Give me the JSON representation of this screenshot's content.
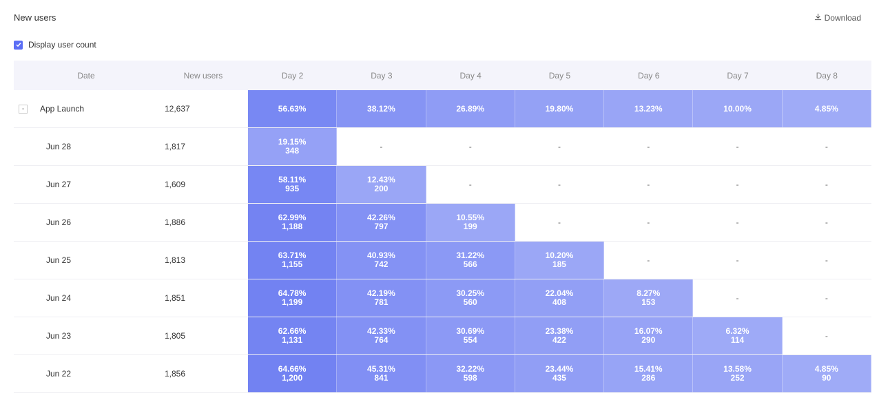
{
  "header": {
    "title": "New users",
    "download_label": "Download",
    "checkbox_label": "Display user count",
    "checkbox_checked": true
  },
  "columns": [
    "Date",
    "New users",
    "Day 2",
    "Day 3",
    "Day 4",
    "Day 5",
    "Day 6",
    "Day 7",
    "Day 8"
  ],
  "summary": {
    "label": "App Launch",
    "collapse_symbol": "-",
    "new_users": "12,637",
    "days": [
      "56.63%",
      "38.12%",
      "26.89%",
      "19.80%",
      "13.23%",
      "10.00%",
      "4.85%"
    ]
  },
  "rows": [
    {
      "date": "Jun 28",
      "new_users": "1,817",
      "days": [
        [
          "19.15%",
          "348"
        ],
        null,
        null,
        null,
        null,
        null,
        null
      ]
    },
    {
      "date": "Jun 27",
      "new_users": "1,609",
      "days": [
        [
          "58.11%",
          "935"
        ],
        [
          "12.43%",
          "200"
        ],
        null,
        null,
        null,
        null,
        null
      ]
    },
    {
      "date": "Jun 26",
      "new_users": "1,886",
      "days": [
        [
          "62.99%",
          "1,188"
        ],
        [
          "42.26%",
          "797"
        ],
        [
          "10.55%",
          "199"
        ],
        null,
        null,
        null,
        null
      ]
    },
    {
      "date": "Jun 25",
      "new_users": "1,813",
      "days": [
        [
          "63.71%",
          "1,155"
        ],
        [
          "40.93%",
          "742"
        ],
        [
          "31.22%",
          "566"
        ],
        [
          "10.20%",
          "185"
        ],
        null,
        null,
        null
      ]
    },
    {
      "date": "Jun 24",
      "new_users": "1,851",
      "days": [
        [
          "64.78%",
          "1,199"
        ],
        [
          "42.19%",
          "781"
        ],
        [
          "30.25%",
          "560"
        ],
        [
          "22.04%",
          "408"
        ],
        [
          "8.27%",
          "153"
        ],
        null,
        null
      ]
    },
    {
      "date": "Jun 23",
      "new_users": "1,805",
      "days": [
        [
          "62.66%",
          "1,131"
        ],
        [
          "42.33%",
          "764"
        ],
        [
          "30.69%",
          "554"
        ],
        [
          "23.38%",
          "422"
        ],
        [
          "16.07%",
          "290"
        ],
        [
          "6.32%",
          "114"
        ],
        null
      ]
    },
    {
      "date": "Jun 22",
      "new_users": "1,856",
      "days": [
        [
          "64.66%",
          "1,200"
        ],
        [
          "45.31%",
          "841"
        ],
        [
          "32.22%",
          "598"
        ],
        [
          "23.44%",
          "435"
        ],
        [
          "15.41%",
          "286"
        ],
        [
          "13.58%",
          "252"
        ],
        [
          "4.85%",
          "90"
        ]
      ]
    }
  ],
  "empty_symbol": "-",
  "colors": {
    "accent": "#5b6ef5",
    "header_bg": "#f4f4fb",
    "heat_high": "#7585f2",
    "heat_low": "#9aa6f6"
  }
}
